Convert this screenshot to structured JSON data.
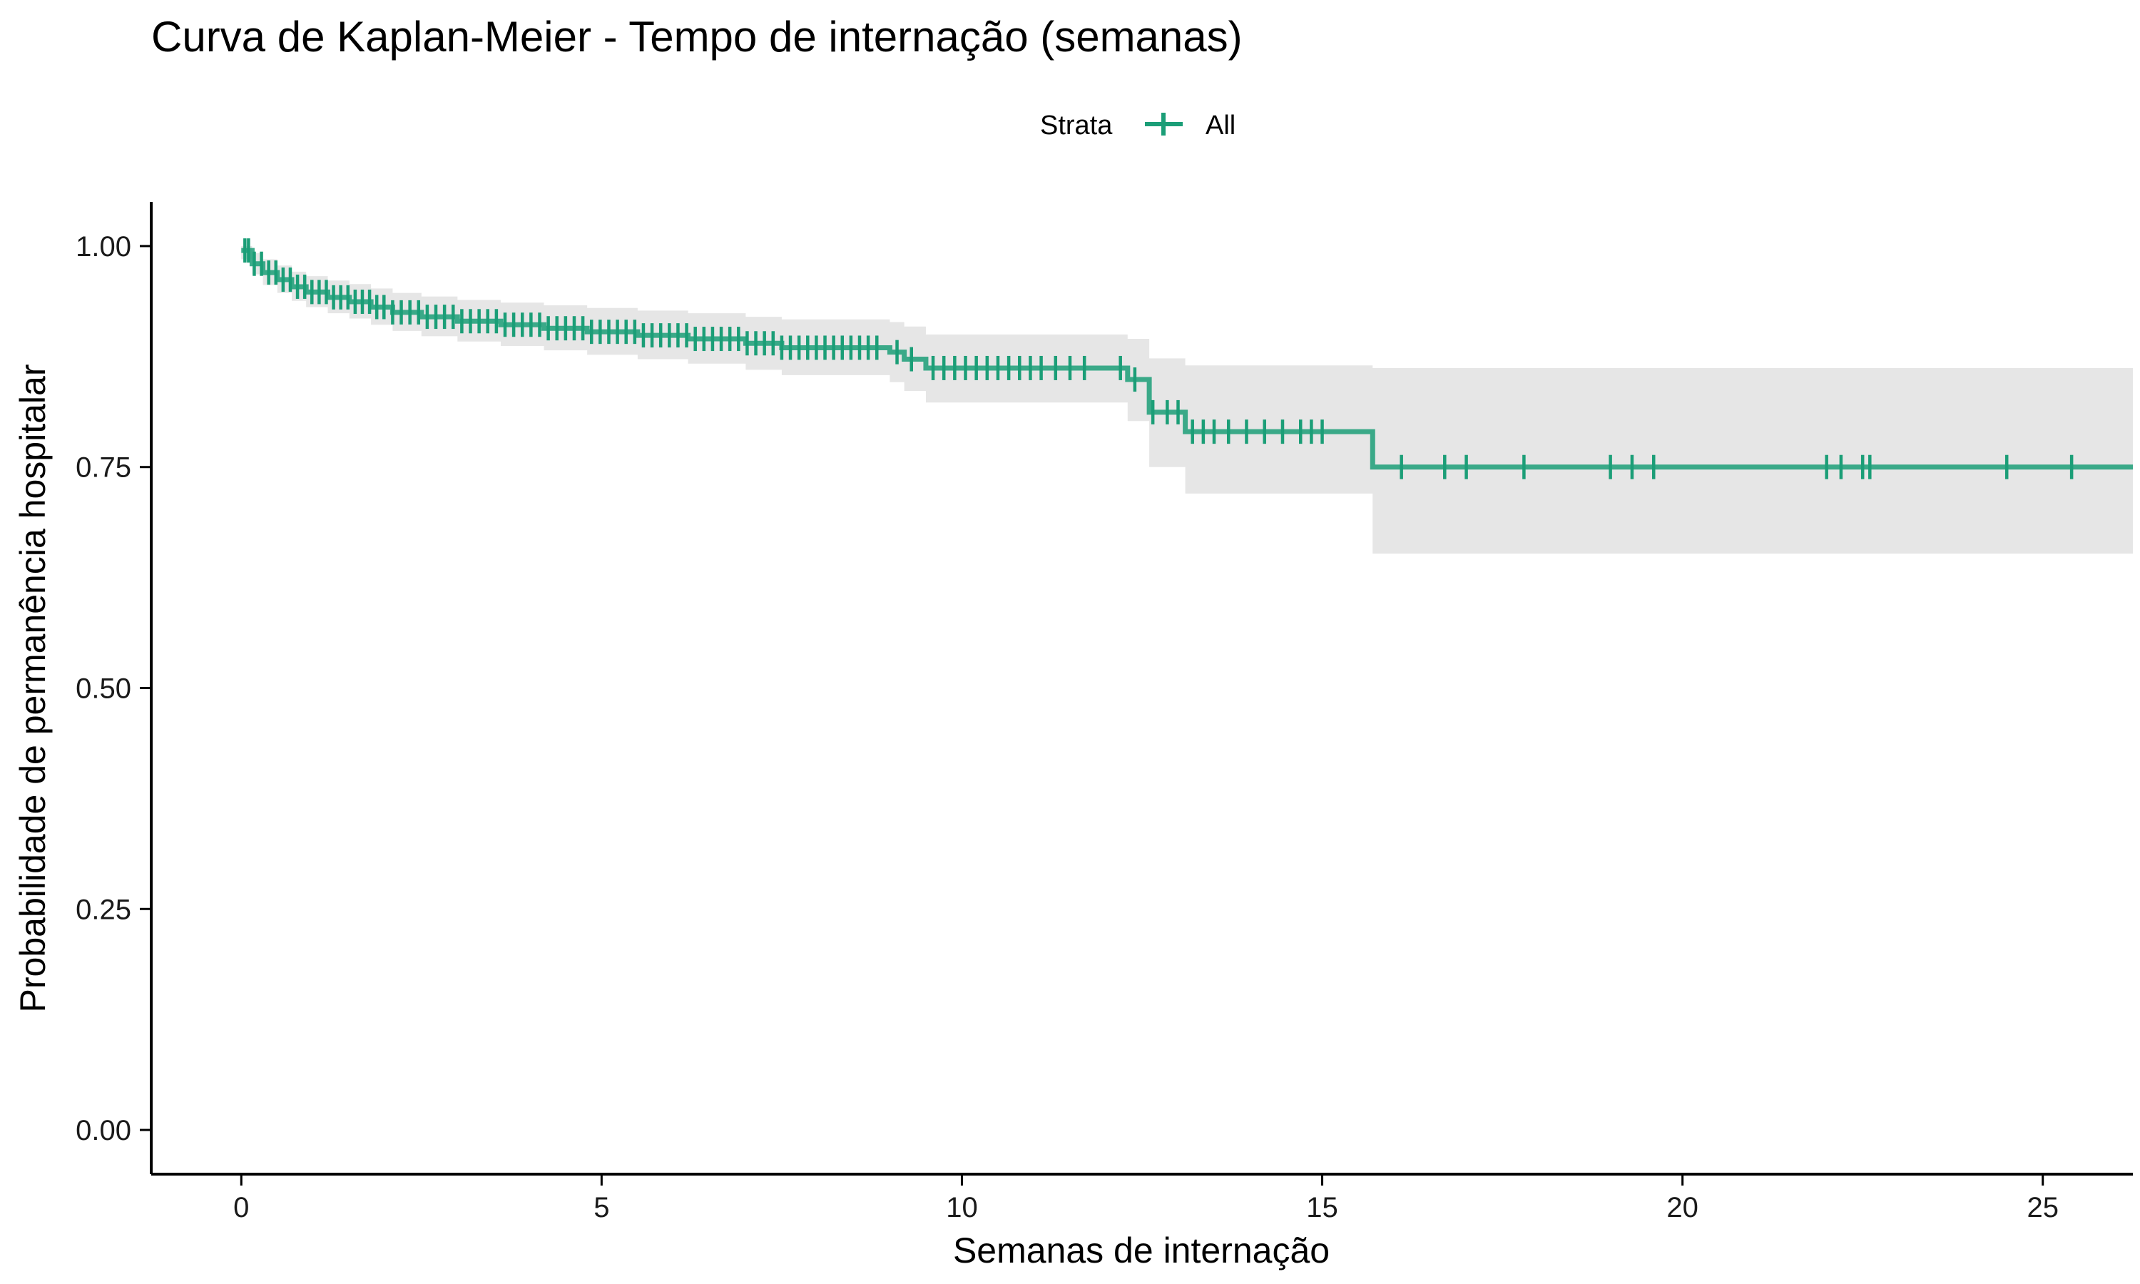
{
  "chart_data": {
    "type": "line",
    "subtype": "kaplan-meier-step",
    "title": "Curva de Kaplan-Meier - Tempo de internação (semanas)",
    "xlabel": "Semanas de internação",
    "ylabel": "Probabilidade de permanência hospitalar",
    "xlim": [
      -1.25,
      26.25
    ],
    "ylim": [
      -0.05,
      1.05
    ],
    "x_ticks": [
      0,
      5,
      10,
      15,
      20,
      25
    ],
    "x_tick_labels": [
      "0",
      "5",
      "10",
      "15",
      "20",
      "25"
    ],
    "y_ticks": [
      0,
      0.25,
      0.5,
      0.75,
      1
    ],
    "y_tick_labels": [
      "0.00",
      "0.25",
      "0.50",
      "0.75",
      "1.00"
    ],
    "grid": false,
    "legend": {
      "title": "Strata",
      "position": "top"
    },
    "colors": {
      "line": "#1b9e77",
      "ci_band": "#e6e6e6",
      "axis": "#000000"
    },
    "series": [
      {
        "name": "All",
        "steps": [
          [
            0,
            0.995
          ],
          [
            0.15,
            0.98
          ],
          [
            0.3,
            0.97
          ],
          [
            0.5,
            0.962
          ],
          [
            0.7,
            0.954
          ],
          [
            0.9,
            0.948
          ],
          [
            1.2,
            0.942
          ],
          [
            1.5,
            0.937
          ],
          [
            1.8,
            0.931
          ],
          [
            2.1,
            0.925
          ],
          [
            2.5,
            0.92
          ],
          [
            3.0,
            0.915
          ],
          [
            3.6,
            0.911
          ],
          [
            4.2,
            0.907
          ],
          [
            4.8,
            0.903
          ],
          [
            5.5,
            0.899
          ],
          [
            6.2,
            0.895
          ],
          [
            7.0,
            0.89
          ],
          [
            7.5,
            0.885
          ],
          [
            9.0,
            0.88
          ],
          [
            9.2,
            0.872
          ],
          [
            9.5,
            0.862
          ],
          [
            12.3,
            0.849
          ],
          [
            12.6,
            0.812
          ],
          [
            13.1,
            0.79
          ],
          [
            15.7,
            0.75
          ],
          [
            26.25,
            0.75
          ]
        ],
        "ci_band": [
          [
            0,
            0.985,
            1.0
          ],
          [
            0.15,
            0.968,
            0.992
          ],
          [
            0.3,
            0.956,
            0.985
          ],
          [
            0.5,
            0.947,
            0.978
          ],
          [
            0.7,
            0.938,
            0.971
          ],
          [
            0.9,
            0.931,
            0.966
          ],
          [
            1.2,
            0.924,
            0.961
          ],
          [
            1.5,
            0.918,
            0.957
          ],
          [
            1.8,
            0.911,
            0.952
          ],
          [
            2.1,
            0.904,
            0.947
          ],
          [
            2.5,
            0.898,
            0.943
          ],
          [
            3.0,
            0.892,
            0.939
          ],
          [
            3.6,
            0.887,
            0.936
          ],
          [
            4.2,
            0.882,
            0.933
          ],
          [
            4.8,
            0.877,
            0.93
          ],
          [
            5.5,
            0.872,
            0.927
          ],
          [
            6.2,
            0.867,
            0.924
          ],
          [
            7.0,
            0.86,
            0.92
          ],
          [
            7.5,
            0.854,
            0.917
          ],
          [
            9.0,
            0.846,
            0.914
          ],
          [
            9.2,
            0.836,
            0.909
          ],
          [
            9.5,
            0.823,
            0.9
          ],
          [
            12.3,
            0.802,
            0.895
          ],
          [
            12.6,
            0.75,
            0.873
          ],
          [
            13.1,
            0.72,
            0.865
          ],
          [
            15.7,
            0.652,
            0.862
          ],
          [
            26.25,
            0.652,
            0.862
          ]
        ],
        "censor_times": [
          0.05,
          0.1,
          0.18,
          0.28,
          0.38,
          0.48,
          0.58,
          0.68,
          0.78,
          0.88,
          0.98,
          1.08,
          1.18,
          1.28,
          1.38,
          1.48,
          1.58,
          1.68,
          1.78,
          1.88,
          1.98,
          2.1,
          2.22,
          2.34,
          2.46,
          2.58,
          2.7,
          2.82,
          2.94,
          3.06,
          3.18,
          3.3,
          3.42,
          3.54,
          3.66,
          3.78,
          3.9,
          4.02,
          4.14,
          4.26,
          4.38,
          4.5,
          4.62,
          4.74,
          4.86,
          4.98,
          5.1,
          5.22,
          5.34,
          5.46,
          5.58,
          5.7,
          5.82,
          5.94,
          6.06,
          6.18,
          6.3,
          6.42,
          6.54,
          6.66,
          6.78,
          6.9,
          7.02,
          7.14,
          7.26,
          7.38,
          7.5,
          7.62,
          7.74,
          7.86,
          7.98,
          8.1,
          8.22,
          8.34,
          8.46,
          8.58,
          8.7,
          8.82,
          9.1,
          9.3,
          9.6,
          9.75,
          9.9,
          10.05,
          10.2,
          10.35,
          10.5,
          10.65,
          10.8,
          10.95,
          11.1,
          11.3,
          11.5,
          11.7,
          12.2,
          12.4,
          12.65,
          12.85,
          13.0,
          13.2,
          13.35,
          13.5,
          13.7,
          13.95,
          14.2,
          14.45,
          14.7,
          14.85,
          15.0,
          16.1,
          16.7,
          17.0,
          17.8,
          19.0,
          19.3,
          19.6,
          22.0,
          22.2,
          22.5,
          22.6,
          24.5,
          25.4
        ]
      }
    ]
  }
}
